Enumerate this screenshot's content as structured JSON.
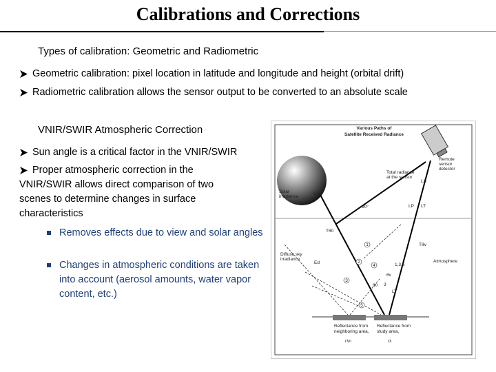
{
  "title": "Calibrations and Corrections",
  "section1": {
    "heading": "Types of calibration: Geometric and Radiometric",
    "bullets": [
      "Geometric calibration: pixel location in latitude and longitude and height (orbital drift)",
      "Radiometric calibration allows the sensor output to be converted to an absolute scale"
    ]
  },
  "section2": {
    "heading": "VNIR/SWIR Atmospheric Correction",
    "bullets": [
      "Sun angle is a critical factor in the VNIR/SWIR",
      "Proper atmospheric correction in the VNIR/SWIR allows direct comparison of two scenes to determine changes in surface characteristics"
    ],
    "subbullets": [
      "Removes effects due to view and solar angles",
      "Changes in atmospheric conditions are taken into account (aerosol amounts, water vapor content, etc.)"
    ]
  },
  "figure": {
    "title": [
      "Various Paths of",
      "Satellite Received Radiance"
    ],
    "labels": [
      "Remote",
      "sensor",
      "detector",
      "Total radiance",
      "at the sensor",
      "LS",
      "Solar",
      "irradiance",
      "E0",
      "90°",
      "LP",
      "LT",
      "Tθ0",
      "Tθv",
      "Diffuse sky",
      "irradiance",
      "Ed",
      "Atmosphere",
      "1,3,5",
      "θv",
      "θ0",
      "3",
      "LT",
      "Reflectance from",
      "neighboring area,",
      "rλn",
      "Reflectance from",
      "study area,",
      "rλ"
    ],
    "paths": [
      "1",
      "2",
      "3",
      "4",
      "5"
    ]
  }
}
